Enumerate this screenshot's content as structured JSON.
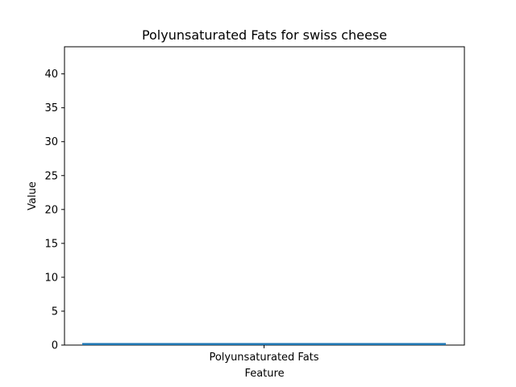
{
  "chart_data": {
    "type": "bar",
    "title": "Polyunsaturated Fats for swiss cheese",
    "xlabel": "Feature",
    "ylabel": "Value",
    "categories": [
      "Polyunsaturated Fats"
    ],
    "values": [
      0.3
    ],
    "ylim": [
      0,
      44
    ],
    "yticks": [
      0,
      5,
      10,
      15,
      20,
      25,
      30,
      35,
      40
    ],
    "grid": false,
    "bar_color": "#1f77b4"
  }
}
